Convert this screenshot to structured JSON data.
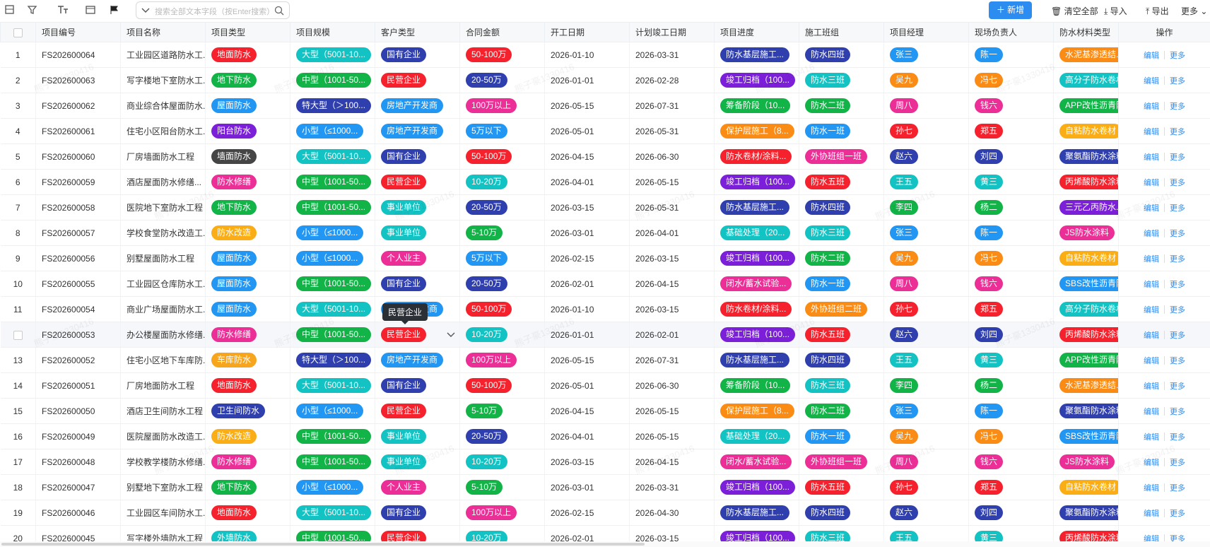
{
  "toolbar": {
    "search_placeholder": "搜索全部文本字段（按Enter搜索）",
    "add": "新增",
    "clear": "清空全部",
    "import": "导入",
    "export": "导出",
    "more": "更多"
  },
  "watermark": "熊子豪1330416",
  "table": {
    "columns": [
      "项目编号",
      "项目名称",
      "项目类型",
      "项目规模",
      "客户类型",
      "合同金额",
      "开工日期",
      "计划竣工日期",
      "项目进度",
      "施工班组",
      "项目经理",
      "现场负责人",
      "防水材料类型",
      "操作"
    ],
    "actions": [
      "编辑",
      "更多"
    ],
    "tooltip": "民营企业",
    "rows": [
      [
        1,
        "FS202600064",
        "工业园区道路防水工...",
        "地面防水",
        "大型（5001-10...",
        "国有企业",
        "50-100万",
        "2026-01-10",
        "2026-03-31",
        "防水基层施工...",
        "防水四班",
        "张三",
        "陈一",
        "水泥基渗透结..."
      ],
      [
        2,
        "FS202600063",
        "写字楼地下室防水工...",
        "地下防水",
        "中型（1001-50...",
        "民营企业",
        "20-50万",
        "2026-01-01",
        "2026-02-28",
        "竣工归档（100...",
        "防水三班",
        "吴九",
        "冯七",
        "高分子防水卷材"
      ],
      [
        3,
        "FS202600062",
        "商业综合体屋面防水...",
        "屋面防水",
        "特大型（＞100...",
        "房地产开发商",
        "100万以上",
        "2026-05-15",
        "2026-07-31",
        "筹备阶段（10...",
        "防水二班",
        "周八",
        "钱六",
        "APP改性沥青防"
      ],
      [
        4,
        "FS202600061",
        "住宅小区阳台防水工...",
        "阳台防水",
        "小型（≤1000...",
        "房地产开发商",
        "5万以下",
        "2026-05-01",
        "2026-05-31",
        "保护层施工（8...",
        "防水一班",
        "孙七",
        "郑五",
        "自粘防水卷材"
      ],
      [
        5,
        "FS202600060",
        "厂房墙面防水工程",
        "墙面防水",
        "大型（5001-10...",
        "国有企业",
        "50-100万",
        "2026-04-15",
        "2026-06-30",
        "防水卷材/涂料...",
        "外协班组一班",
        "赵六",
        "刘四",
        "聚氨酯防水涂料"
      ],
      [
        6,
        "FS202600059",
        "酒店屋面防水修缮...",
        "防水修缮",
        "中型（1001-50...",
        "民营企业",
        "10-20万",
        "2026-04-01",
        "2026-05-15",
        "竣工归档（100...",
        "防水五班",
        "王五",
        "黄三",
        "丙烯酸防水涂料"
      ],
      [
        7,
        "FS202600058",
        "医院地下室防水工程",
        "地下防水",
        "中型（1001-50...",
        "事业单位",
        "20-50万",
        "2026-03-15",
        "2026-05-31",
        "防水基层施工...",
        "防水四班",
        "李四",
        "杨二",
        "三元乙丙防水..."
      ],
      [
        8,
        "FS202600057",
        "学校食堂防水改造工...",
        "防水改造",
        "小型（≤1000...",
        "事业单位",
        "5-10万",
        "2026-03-01",
        "2026-04-01",
        "基础处理（20...",
        "防水三班",
        "张三",
        "陈一",
        "JS防水涂料"
      ],
      [
        9,
        "FS202600056",
        "别墅屋面防水工程",
        "屋面防水",
        "小型（≤1000...",
        "个人业主",
        "5万以下",
        "2026-02-15",
        "2026-03-15",
        "竣工归档（100...",
        "防水二班",
        "吴九",
        "冯七",
        "自粘防水卷材"
      ],
      [
        10,
        "FS202600055",
        "工业园区仓库防水工...",
        "屋面防水",
        "中型（1001-50...",
        "国有企业",
        "20-50万",
        "2026-02-01",
        "2026-04-15",
        "闭水/蓄水试验...",
        "防水一班",
        "周八",
        "钱六",
        "SBS改性沥青防"
      ],
      [
        11,
        "FS202600054",
        "商业广场屋面防水工...",
        "屋面防水",
        "大型（5001-10...",
        "房地产开发商",
        "50-100万",
        "2026-01-10",
        "2026-03-15",
        "防水卷材/涂料...",
        "外协班组二班",
        "孙七",
        "郑五",
        "高分子防水卷材"
      ],
      [
        null,
        "FS202600053",
        "办公楼屋面防水修缮...",
        "防水修缮",
        "中型（1001-50...",
        "民营企业",
        "10-20万",
        "2026-01-01",
        "2026-02-01",
        "竣工归档（100...",
        "防水五班",
        "赵六",
        "刘四",
        "丙烯酸防水涂料"
      ],
      [
        13,
        "FS202600052",
        "住宅小区地下车库防...",
        "车库防水",
        "特大型（＞100...",
        "房地产开发商",
        "100万以上",
        "2026-05-15",
        "2026-07-31",
        "防水基层施工...",
        "防水四班",
        "王五",
        "黄三",
        "APP改性沥青防"
      ],
      [
        14,
        "FS202600051",
        "厂房地面防水工程",
        "地面防水",
        "大型（5001-10...",
        "国有企业",
        "50-100万",
        "2026-05-01",
        "2026-06-30",
        "筹备阶段（10...",
        "防水三班",
        "李四",
        "杨二",
        "水泥基渗透结..."
      ],
      [
        15,
        "FS202600050",
        "酒店卫生间防水工程",
        "卫生间防水",
        "小型（≤1000...",
        "民营企业",
        "5-10万",
        "2026-04-15",
        "2026-05-15",
        "保护层施工（8...",
        "防水二班",
        "张三",
        "陈一",
        "聚氨酯防水涂料"
      ],
      [
        16,
        "FS202600049",
        "医院屋面防水改造工...",
        "防水改造",
        "中型（1001-50...",
        "事业单位",
        "20-50万",
        "2026-04-01",
        "2026-05-15",
        "基础处理（20...",
        "防水一班",
        "吴九",
        "冯七",
        "SBS改性沥青防"
      ],
      [
        17,
        "FS202600048",
        "学校教学楼防水修缮...",
        "防水修缮",
        "中型（1001-50...",
        "事业单位",
        "10-20万",
        "2026-03-15",
        "2026-04-15",
        "闭水/蓄水试验...",
        "外协班组一班",
        "周八",
        "钱六",
        "JS防水涂料"
      ],
      [
        18,
        "FS202600047",
        "别墅地下室防水工程",
        "地下防水",
        "小型（≤1000...",
        "个人业主",
        "5-10万",
        "2026-03-01",
        "2026-03-31",
        "竣工归档（100...",
        "防水五班",
        "孙七",
        "郑五",
        "自粘防水卷材"
      ],
      [
        19,
        "FS202600046",
        "工业园区车间防水工...",
        "地面防水",
        "大型（5001-10...",
        "国有企业",
        "100万以上",
        "2026-02-15",
        "2026-04-30",
        "防水基层施工...",
        "防水四班",
        "赵六",
        "刘四",
        "聚氨酯防水涂料"
      ],
      [
        20,
        "FS202600045",
        "写字楼外墙防水工程",
        "外墙防水",
        "中型（1001-50...",
        "民营企业",
        "10-20万",
        "2026-02-01",
        "2026-03-15",
        "竣工归档（100...",
        "防水三班",
        "王五",
        "黄三",
        "丙烯酸防水涂料"
      ]
    ],
    "tag_colors": {
      "地面防水": "#f5222d",
      "地下防水": "#12b347",
      "屋面防水": "#2196f3",
      "阳台防水": "#7c1fd8",
      "墙面防水": "#454545",
      "防水修缮": "#eb2f96",
      "防水改造": "#faad14",
      "车库防水": "#f7a51c",
      "卫生间防水": "#2f3fae",
      "外墙防水": "#13c2c2",
      "大型（5001-10...": "#13c2c2",
      "中型（1001-50...": "#12b347",
      "特大型（＞100...": "#2f3fae",
      "小型（≤1000...": "#2196f3",
      "国有企业": "#2f3fae",
      "民营企业": "#f5222d",
      "房地产开发商": "#2196f3",
      "事业单位": "#13c2c2",
      "个人业主": "#eb2f96",
      "50-100万": "#f5222d",
      "20-50万": "#2f3fae",
      "100万以上": "#eb2f96",
      "5万以下": "#2196f3",
      "10-20万": "#13c2c2",
      "5-10万": "#12b347",
      "防水基层施工...": "#2f3fae",
      "竣工归档（100...": "#7c1fd8",
      "筹备阶段（10...": "#12b347",
      "保护层施工（8...": "#fa8c16",
      "防水卷材/涂料...": "#f5222d",
      "基础处理（20...": "#13c2c2",
      "闭水/蓄水试验...": "#eb2f96",
      "防水四班": "#2f3fae",
      "防水三班": "#13c2c2",
      "防水二班": "#12b347",
      "防水一班": "#2196f3",
      "外协班组一班": "#eb2f96",
      "防水五班": "#f5222d",
      "外协班组二班": "#fa8c16",
      "张三": "#2196f3",
      "吴九": "#fa8c16",
      "周八": "#eb2f96",
      "孙七": "#f5222d",
      "赵六": "#2f3fae",
      "王五": "#13c2c2",
      "李四": "#12b347",
      "陈一": "#2196f3",
      "冯七": "#fa8c16",
      "钱六": "#eb2f96",
      "郑五": "#f5222d",
      "刘四": "#2f3fae",
      "黄三": "#13c2c2",
      "杨二": "#12b347",
      "水泥基渗透结...": "#fa8c16",
      "高分子防水卷材": "#13c2c2",
      "APP改性沥青防": "#12b347",
      "自粘防水卷材": "#faad14",
      "聚氨酯防水涂料": "#2f3fae",
      "丙烯酸防水涂料": "#f5222d",
      "三元乙丙防水...": "#7c1fd8",
      "JS防水涂料": "#eb2f96",
      "SBS改性沥青防": "#2196f3"
    }
  }
}
